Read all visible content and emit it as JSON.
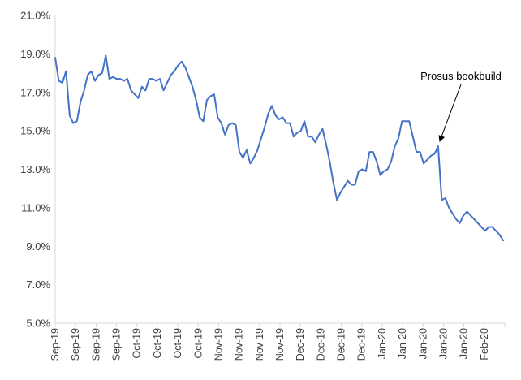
{
  "chart_data": {
    "type": "line",
    "title": "",
    "xlabel": "",
    "ylabel": "",
    "ylim": [
      5.0,
      21.0
    ],
    "y_ticks": [
      "5.0%",
      "7.0%",
      "9.0%",
      "11.0%",
      "13.0%",
      "15.0%",
      "17.0%",
      "19.0%",
      "21.0%"
    ],
    "grid": false,
    "legend": "none",
    "x_ticks": [
      "Sep-19",
      "Sep-19",
      "Sep-19",
      "Sep-19",
      "Oct-19",
      "Oct-19",
      "Oct-19",
      "Oct-19",
      "Nov-19",
      "Nov-19",
      "Nov-19",
      "Nov-19",
      "Dec-19",
      "Dec-19",
      "Dec-19",
      "Dec-19",
      "Jan-20",
      "Jan-20",
      "Jan-20",
      "Jan-20",
      "Jan-20",
      "Feb-20"
    ],
    "series": [
      {
        "color": "#4472C4",
        "values": [
          18.8,
          17.6,
          17.5,
          18.1,
          15.8,
          15.4,
          15.5,
          16.5,
          17.1,
          17.9,
          18.1,
          17.6,
          17.9,
          18.0,
          18.9,
          17.7,
          17.8,
          17.7,
          17.7,
          17.6,
          17.7,
          17.1,
          16.9,
          16.7,
          17.3,
          17.1,
          17.7,
          17.7,
          17.6,
          17.7,
          17.1,
          17.5,
          17.9,
          18.1,
          18.4,
          18.6,
          18.3,
          17.8,
          17.3,
          16.6,
          15.7,
          15.5,
          16.6,
          16.8,
          16.9,
          15.7,
          15.4,
          14.8,
          15.3,
          15.4,
          15.3,
          13.9,
          13.6,
          14.0,
          13.3,
          13.6,
          14.0,
          14.6,
          15.2,
          15.9,
          16.3,
          15.8,
          15.6,
          15.7,
          15.4,
          15.4,
          14.7,
          14.9,
          15.0,
          15.5,
          14.7,
          14.7,
          14.4,
          14.8,
          15.1,
          14.3,
          13.4,
          12.3,
          11.4,
          11.8,
          12.1,
          12.4,
          12.2,
          12.2,
          12.9,
          13.0,
          12.9,
          13.9,
          13.9,
          13.4,
          12.7,
          12.9,
          13.0,
          13.4,
          14.2,
          14.6,
          15.5,
          15.5,
          15.5,
          14.7,
          13.9,
          13.9,
          13.3,
          13.5,
          13.7,
          13.8,
          14.2,
          11.4,
          11.5,
          11.0,
          10.7,
          10.4,
          10.2,
          10.6,
          10.8,
          10.6,
          10.4,
          10.2,
          10.0,
          9.8,
          10.0,
          10.0,
          9.8,
          9.6,
          9.3
        ]
      }
    ],
    "annotations": [
      {
        "text": "Prosus bookbuild",
        "point_index": 106
      }
    ]
  }
}
